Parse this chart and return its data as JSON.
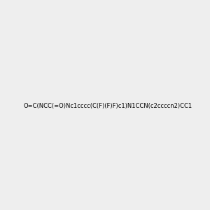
{
  "background_color": "#eeeeee",
  "bond_color": "#2e8b8b",
  "nitrogen_color": "#2222cc",
  "oxygen_color": "#cc0000",
  "fluorine_color": "#cc00cc",
  "carbon_color": "#2e8b8b",
  "hydrogen_color": "#2e8b8b",
  "smiles": "O=C(NCC(=O)Nc1cccc(C(F)(F)F)c1)N1CCN(c2ccccn2)CC1",
  "title": "",
  "figsize": [
    3.0,
    3.0
  ],
  "dpi": 100
}
